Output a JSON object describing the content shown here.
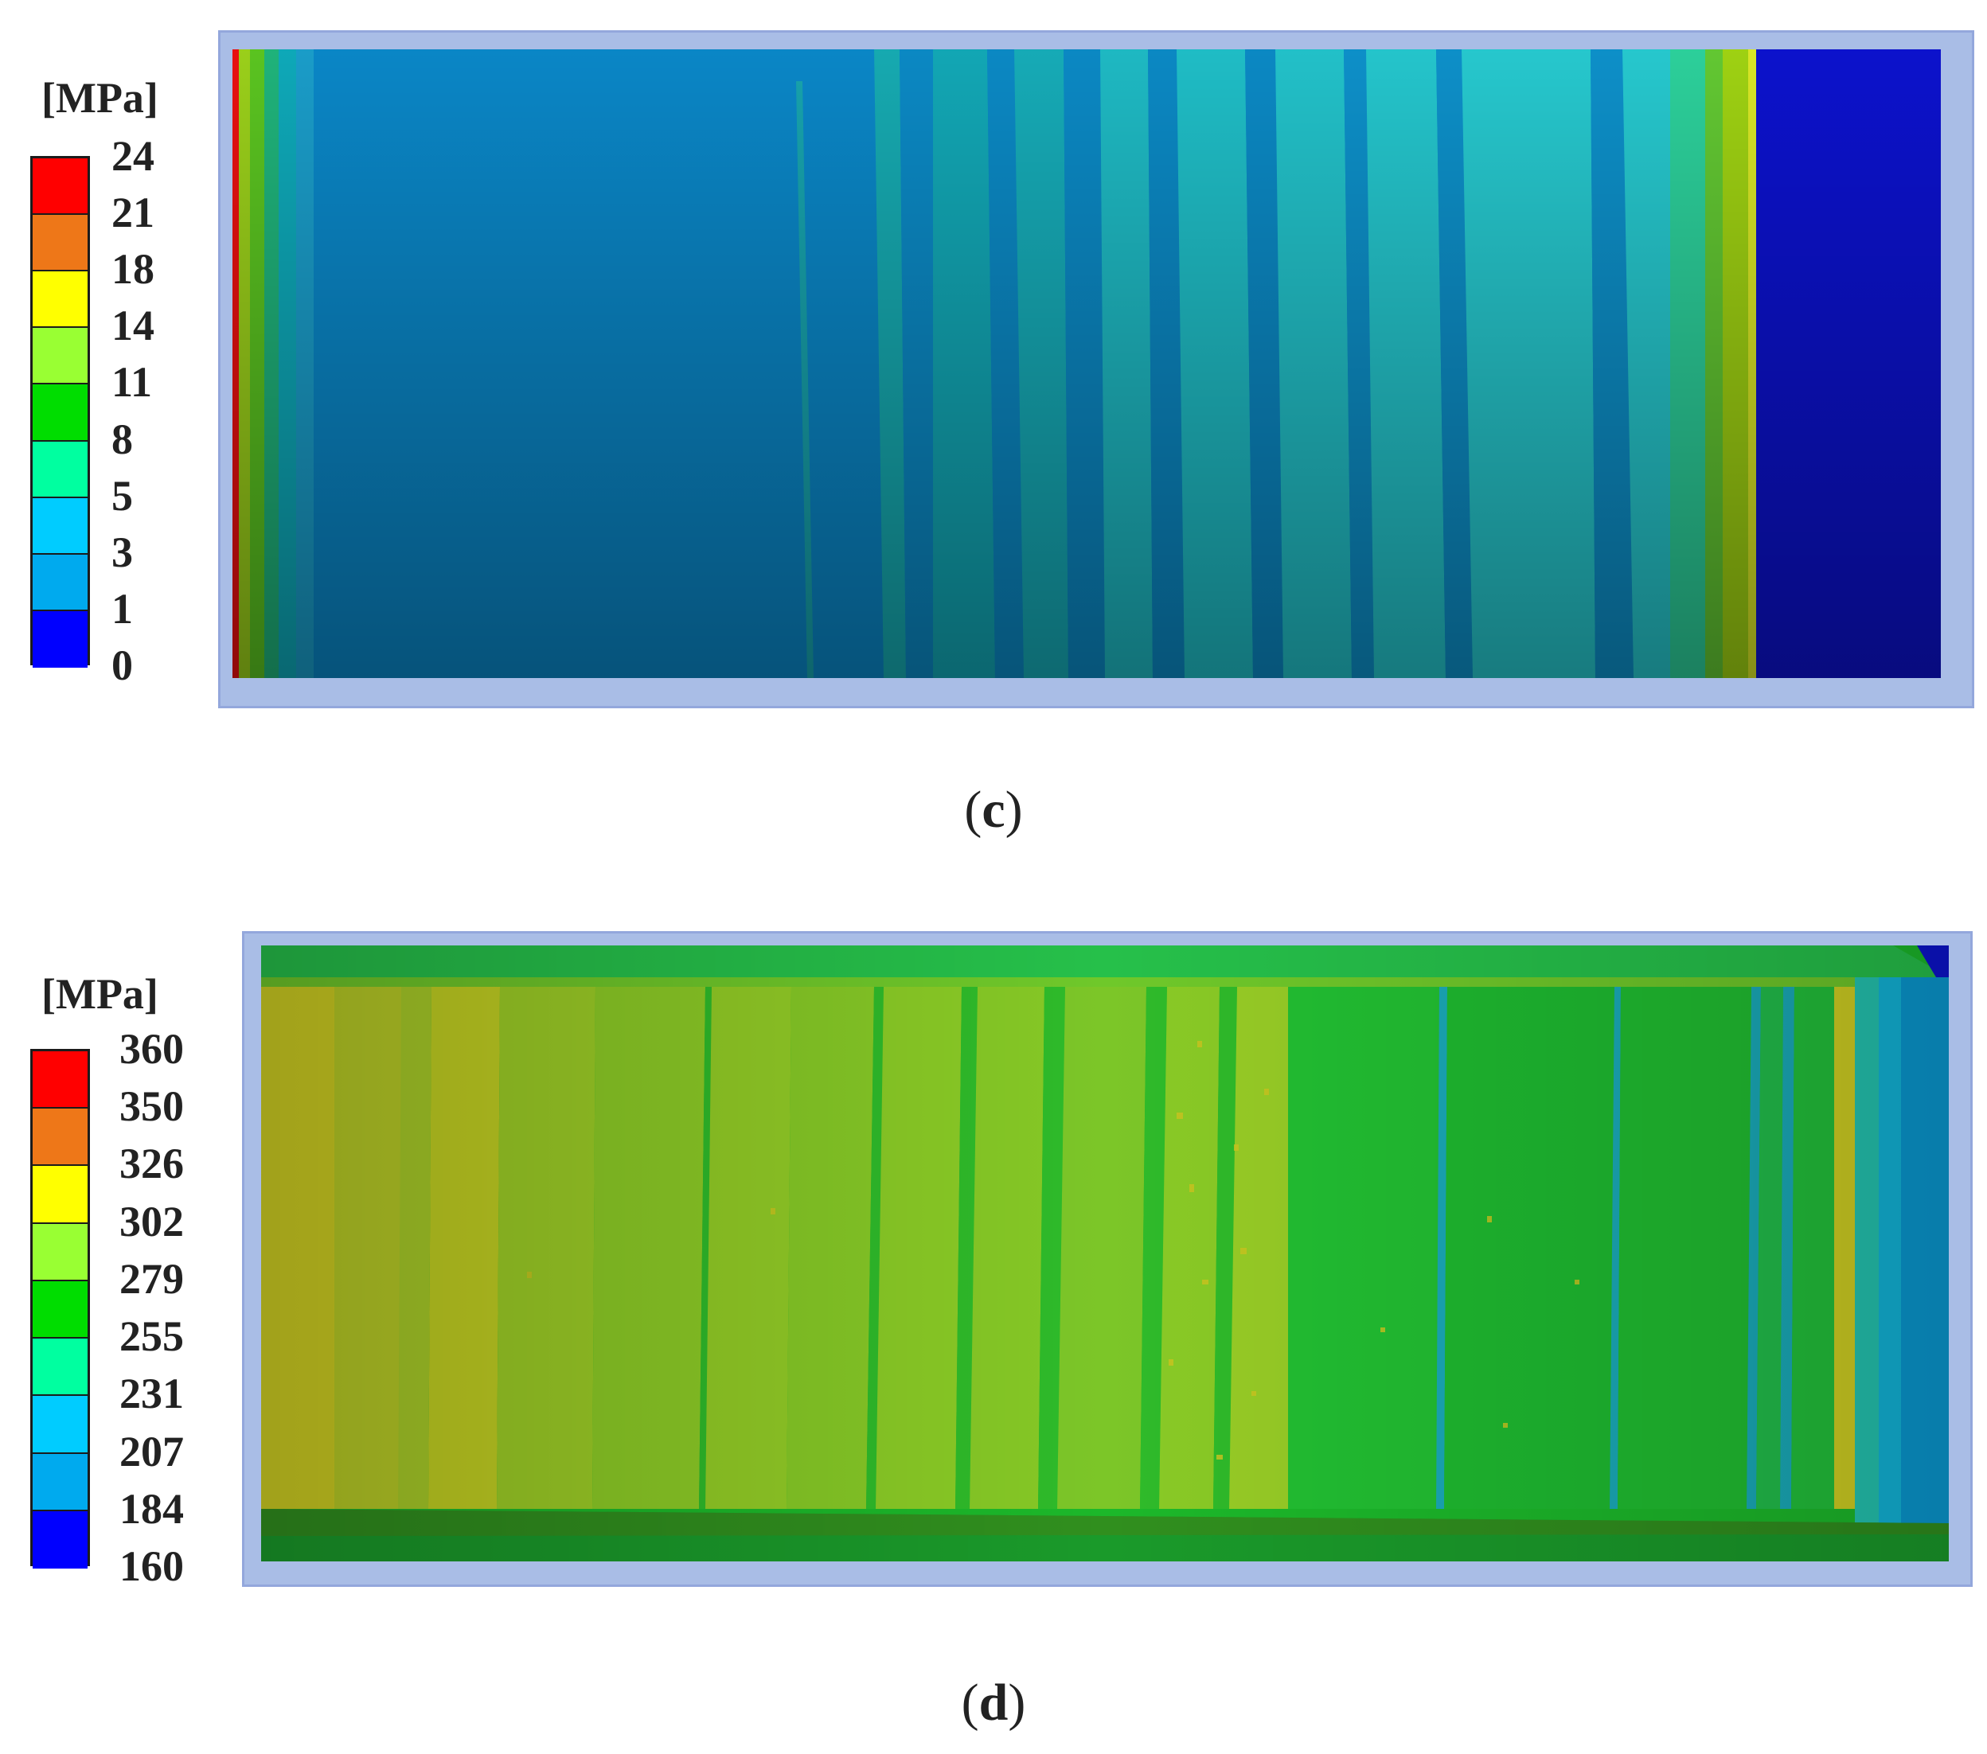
{
  "panel_c": {
    "unit": "[MPa]",
    "legend_ticks": [
      "24",
      "21",
      "18",
      "14",
      "11",
      "8",
      "5",
      "3",
      "1",
      "0"
    ],
    "legend_colors": [
      "#ff0000",
      "#ee7718",
      "#ffff00",
      "#99ff33",
      "#00dd00",
      "#00ffa0",
      "#00ccff",
      "#00aaee",
      "#0000ff"
    ],
    "caption_open": "(",
    "caption_letter": "c",
    "caption_close": ")"
  },
  "panel_d": {
    "unit": "[MPa]",
    "legend_ticks": [
      "360",
      "350",
      "326",
      "302",
      "279",
      "255",
      "231",
      "207",
      "184",
      "160"
    ],
    "legend_colors": [
      "#ff0000",
      "#ee7718",
      "#ffff00",
      "#99ff33",
      "#00dd00",
      "#00ffa0",
      "#00ccff",
      "#00aaee",
      "#0000ff"
    ],
    "caption_open": "(",
    "caption_letter": "d",
    "caption_close": ")"
  }
}
